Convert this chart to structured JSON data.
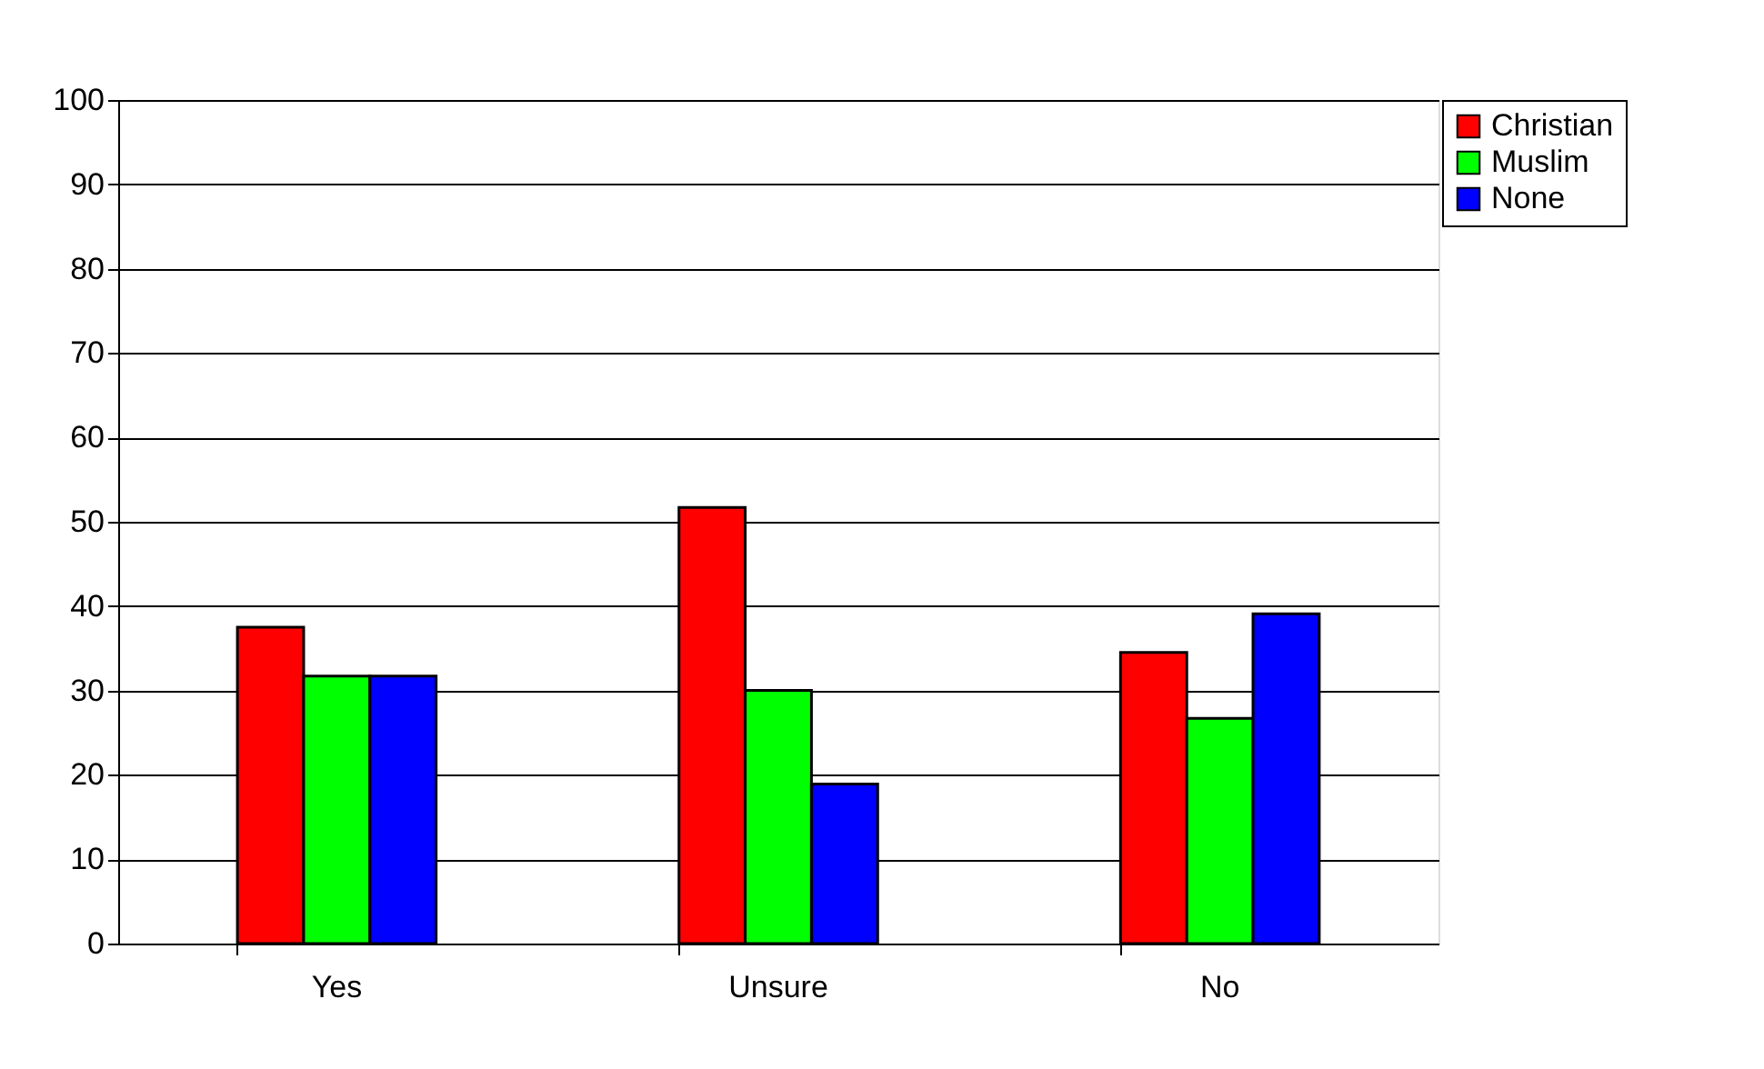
{
  "chart_data": {
    "type": "bar",
    "categories": [
      "Yes",
      "Unsure",
      "No"
    ],
    "series": [
      {
        "name": "Christian",
        "color": "#ff0000",
        "values": [
          37.5,
          51.7,
          34.5
        ]
      },
      {
        "name": "Muslim",
        "color": "#00ff00",
        "values": [
          31.7,
          30,
          26.7
        ]
      },
      {
        "name": "None",
        "color": "#0000ff",
        "values": [
          31.7,
          18.9,
          39.1
        ]
      }
    ],
    "ylim": [
      0,
      100
    ],
    "yticks": [
      0,
      10,
      20,
      30,
      40,
      50,
      60,
      70,
      80,
      90,
      100
    ],
    "grid": "y",
    "legend": "right"
  }
}
